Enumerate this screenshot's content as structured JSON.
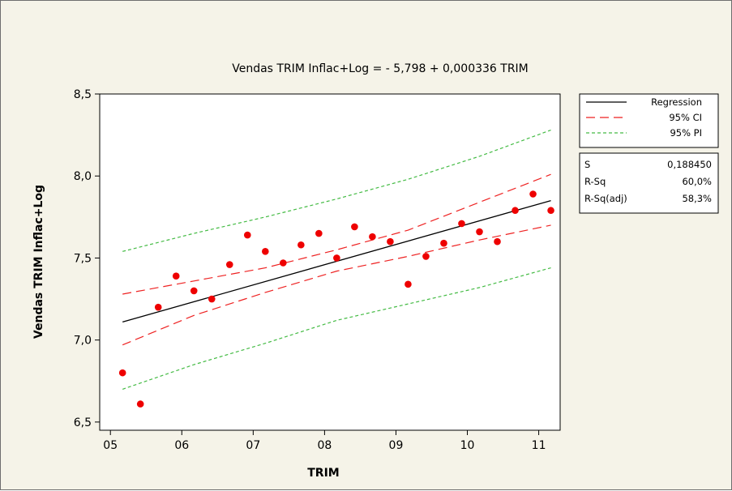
{
  "chart_data": {
    "type": "scatter",
    "title": "Vendas TRIM Inflac+Log =  - 5,798 + 0,000336 TRIM",
    "xlabel": "TRIM",
    "ylabel": "Vendas TRIM Inflac+Log",
    "x_tick_labels": [
      "05",
      "06",
      "07",
      "08",
      "09",
      "10",
      "11"
    ],
    "y_tick_labels": [
      "6,5",
      "7,0",
      "7,5",
      "8,0",
      "8,5"
    ],
    "x_ticks": [
      5,
      6,
      7,
      8,
      9,
      10,
      11
    ],
    "y_ticks": [
      6.5,
      7.0,
      7.5,
      8.0,
      8.5
    ],
    "xlim": [
      4.85,
      11.3
    ],
    "ylim": [
      6.45,
      8.5
    ],
    "grid": false,
    "legend_position": "right",
    "points": {
      "x": [
        5.17,
        5.42,
        5.67,
        5.92,
        6.17,
        6.42,
        6.67,
        6.92,
        7.17,
        7.42,
        7.67,
        7.92,
        8.17,
        8.42,
        8.67,
        8.92,
        9.17,
        9.42,
        9.67,
        9.92,
        10.17,
        10.42,
        10.67,
        10.92,
        11.17
      ],
      "y": [
        6.8,
        6.61,
        7.2,
        7.39,
        7.3,
        7.25,
        7.46,
        7.64,
        7.54,
        7.47,
        7.58,
        7.65,
        7.5,
        7.69,
        7.63,
        7.6,
        7.34,
        7.51,
        7.59,
        7.71,
        7.66,
        7.6,
        7.79,
        7.89,
        7.79
      ],
      "color": "#ee0000"
    },
    "series": [
      {
        "name": "Regression",
        "style": "solid",
        "color": "#000000",
        "x": [
          5.17,
          11.17
        ],
        "y": [
          7.11,
          7.85
        ]
      },
      {
        "name": "95% CI",
        "style": "dashed",
        "color": "#ee2222",
        "lower": {
          "x": [
            5.17,
            6.17,
            7.17,
            8.17,
            9.17,
            10.17,
            11.17
          ],
          "y": [
            6.97,
            7.15,
            7.29,
            7.42,
            7.51,
            7.61,
            7.7
          ]
        },
        "upper": {
          "x": [
            5.17,
            6.17,
            7.17,
            8.17,
            9.17,
            10.17,
            11.17
          ],
          "y": [
            7.28,
            7.36,
            7.44,
            7.55,
            7.67,
            7.84,
            8.01
          ]
        }
      },
      {
        "name": "95% PI",
        "style": "dotted",
        "color": "#44bb44",
        "lower": {
          "x": [
            5.17,
            6.17,
            7.17,
            8.17,
            9.17,
            10.17,
            11.17
          ],
          "y": [
            6.7,
            6.85,
            6.98,
            7.12,
            7.22,
            7.32,
            7.44
          ]
        },
        "upper": {
          "x": [
            5.17,
            6.17,
            7.17,
            8.17,
            9.17,
            10.17,
            11.17
          ],
          "y": [
            7.54,
            7.65,
            7.75,
            7.86,
            7.98,
            8.12,
            8.28
          ]
        }
      }
    ],
    "stats": [
      {
        "label": "S",
        "value": "0,188450"
      },
      {
        "label": "R-Sq",
        "value": "60,0%"
      },
      {
        "label": "R-Sq(adj)",
        "value": "58,3%"
      }
    ]
  }
}
